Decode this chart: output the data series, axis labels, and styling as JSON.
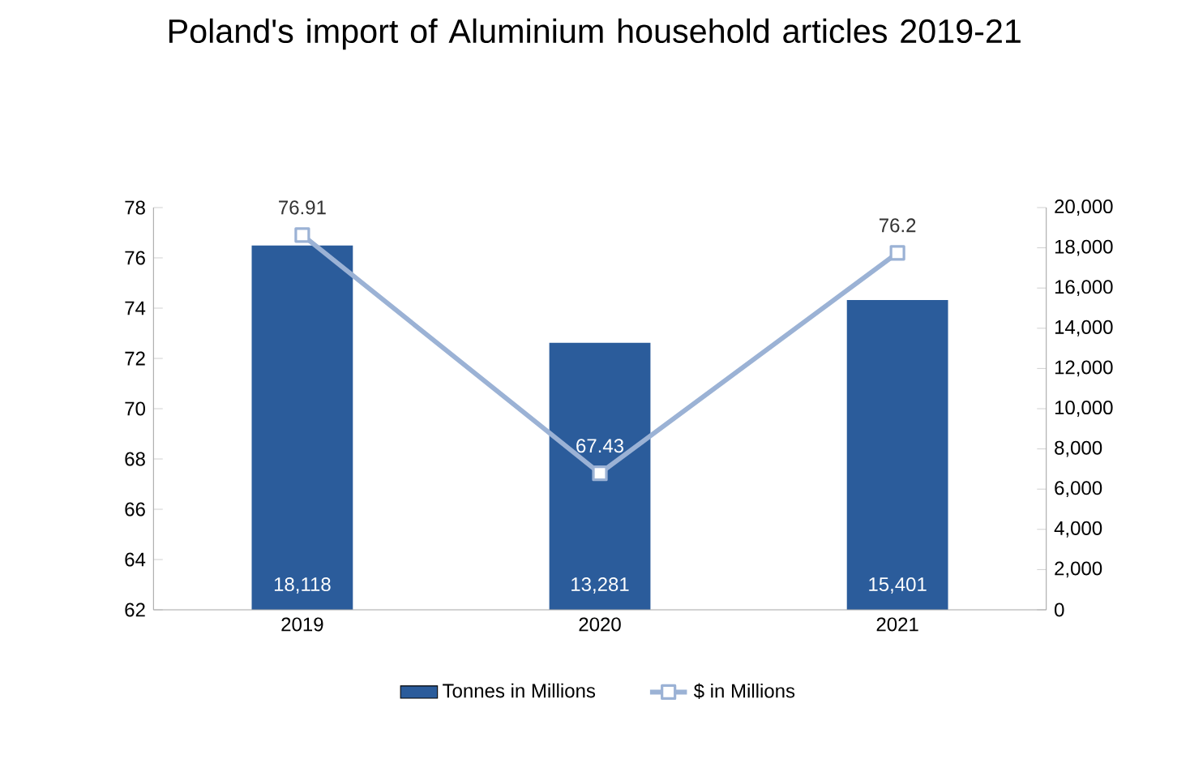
{
  "chart_data": {
    "type": "bar",
    "title": "Poland's import of Aluminium household articles 2019-21",
    "categories": [
      "2019",
      "2020",
      "2021"
    ],
    "series": [
      {
        "name": "Tonnes in Millions",
        "axis": "y2",
        "color": "#2b5c9b",
        "values": [
          18118,
          13281,
          15401
        ],
        "value_labels": [
          "18,118",
          "13,281",
          "15,401"
        ]
      },
      {
        "name": "$ in Millions",
        "type": "line",
        "axis": "y",
        "color": "#9bb2d5",
        "values": [
          76.91,
          67.43,
          76.2
        ],
        "value_labels": [
          "76.91",
          "67.43",
          "76.2"
        ]
      }
    ],
    "ylim": [
      62,
      78
    ],
    "yticks": [
      62,
      64,
      66,
      68,
      70,
      72,
      74,
      76,
      78
    ],
    "y2lim": [
      0,
      20000
    ],
    "y2ticks": [
      0,
      {
        "value": 2000,
        "label": "2,000"
      },
      {
        "value": 4000,
        "label": "4,000"
      },
      {
        "value": 6000,
        "label": "6,000"
      },
      {
        "value": 8000,
        "label": "8,000"
      },
      {
        "value": 10000,
        "label": "10,000"
      },
      {
        "value": 12000,
        "label": "12,000"
      },
      {
        "value": 14000,
        "label": "14,000"
      },
      {
        "value": 16000,
        "label": "16,000"
      },
      {
        "value": 18000,
        "label": "18,000"
      },
      {
        "value": 20000,
        "label": "20,000"
      }
    ],
    "marker": "square",
    "line_style": "solid",
    "grid": false,
    "legend": "bottom"
  }
}
